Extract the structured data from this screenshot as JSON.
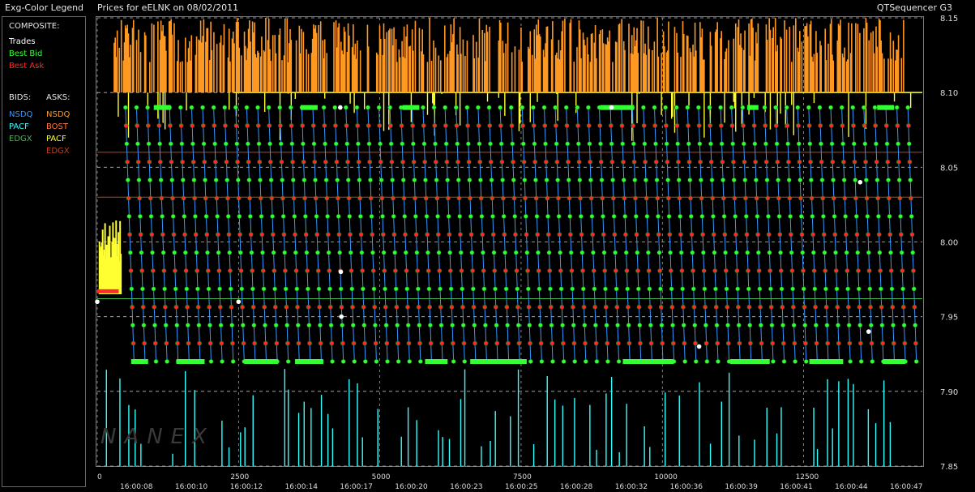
{
  "header": {
    "legend_title": "Exg-Color Legend",
    "chart_title": "Prices for  eELNK  on  08/02/2011",
    "app_name": "QTSequencer G3"
  },
  "legend": {
    "composite_label": "COMPOSITE:",
    "composite": [
      {
        "label": "Trades",
        "color": "#ffffff"
      },
      {
        "label": "Best Bid",
        "color": "#33ff33"
      },
      {
        "label": "Best Ask",
        "color": "#ff2a2a"
      }
    ],
    "bids_label": "BIDS:",
    "asks_label": "ASKS:",
    "bids": [
      {
        "label": "NSDQ",
        "color": "#3399ff"
      },
      {
        "label": "PACF",
        "color": "#33ffff"
      },
      {
        "label": "EDGX",
        "color": "#44bb44"
      }
    ],
    "asks": [
      {
        "label": "NSDQ",
        "color": "#ff9922"
      },
      {
        "label": "BOST",
        "color": "#ff7744"
      },
      {
        "label": "PACF",
        "color": "#ffff33"
      },
      {
        "label": "EDGX",
        "color": "#bb4422"
      }
    ]
  },
  "watermark": "NANEX",
  "chart_data": {
    "type": "line",
    "title": "Prices for  eELNK  on  08/02/2011",
    "ylim": [
      7.85,
      8.15
    ],
    "y_ticks": [
      "8.15",
      "8.10",
      "8.05",
      "8.00",
      "7.95",
      "7.90",
      "7.85"
    ],
    "xlim": [
      0,
      14600
    ],
    "x_ticks": [
      "0",
      "2500",
      "5000",
      "7500",
      "10000",
      "12500"
    ],
    "time_labels": [
      "16:00:08",
      "16:00:10",
      "16:00:12",
      "16:00:14",
      "16:00:17",
      "16:00:20",
      "16:00:23",
      "16:00:25",
      "16:00:28",
      "16:00:32",
      "16:00:36",
      "16:00:39",
      "16:00:41",
      "16:00:44",
      "16:00:47"
    ],
    "grid": true,
    "best_bid_low": 7.92,
    "best_bid_high": 8.09,
    "best_ask_high": 8.1,
    "trades": [
      [
        0,
        7.96
      ],
      [
        2500,
        7.96
      ],
      [
        4300,
        8.09
      ],
      [
        4310,
        7.98
      ],
      [
        4320,
        7.95
      ],
      [
        9100,
        8.09
      ],
      [
        10650,
        7.93
      ],
      [
        13500,
        8.04
      ],
      [
        13650,
        7.94
      ]
    ],
    "colors": {
      "best_bid": "#33ff33",
      "best_ask": "#ff2a2a",
      "nsdq_bid": "#3399ff",
      "pacf_bid": "#33ffff",
      "nsdq_ask": "#ff9922",
      "pacf_ask": "#ffff33",
      "grid": "#bbbbbb"
    }
  }
}
